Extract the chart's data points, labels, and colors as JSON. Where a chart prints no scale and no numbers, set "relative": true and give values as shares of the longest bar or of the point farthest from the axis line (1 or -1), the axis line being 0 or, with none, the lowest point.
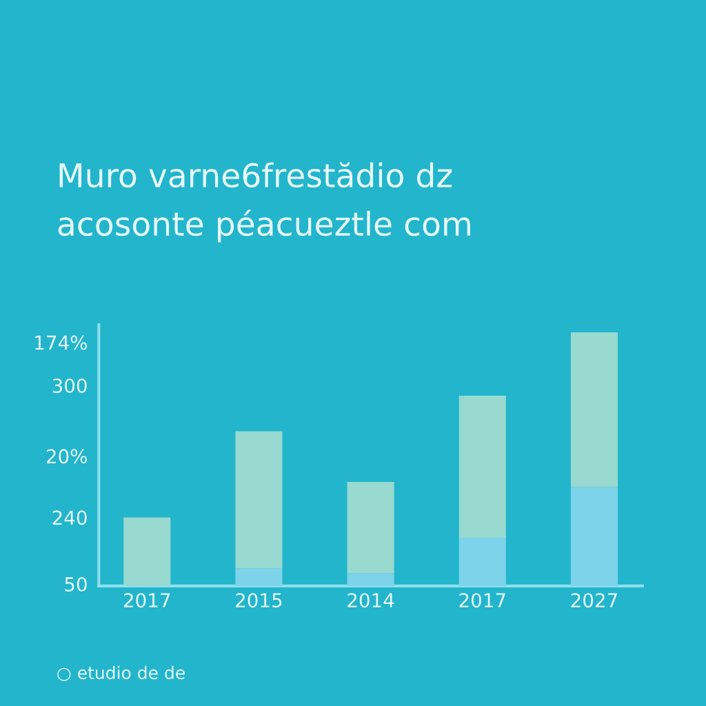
{
  "chart_data": {
    "type": "bar",
    "title": "Muro varne6frestădio dz\nacosonte péacueztle com",
    "categories": [
      "2017",
      "2015",
      "2014",
      "2017",
      "2027"
    ],
    "stacked": true,
    "relative": true,
    "series": [
      {
        "color": "#7cd3ea",
        "values": [
          null,
          0.07,
          0.05,
          0.19,
          0.39
        ]
      },
      {
        "color": "#98d9d0",
        "values": [
          0.27,
          0.54,
          0.36,
          0.56,
          0.61
        ]
      }
    ],
    "annotations": [
      "50",
      "240",
      "20%",
      "300",
      "174%",
      "○ etudio de de"
    ]
  }
}
